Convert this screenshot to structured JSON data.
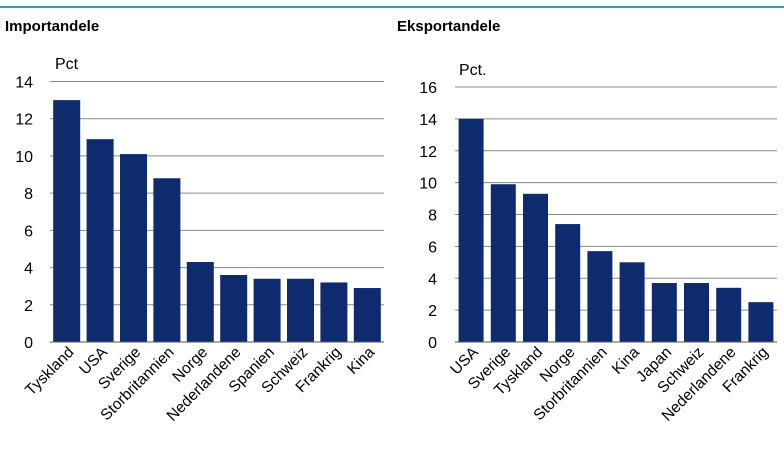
{
  "chart_data": [
    {
      "type": "bar",
      "title": "Importandele",
      "ylabel": "Pct",
      "ylim": [
        0,
        14
      ],
      "yticks": [
        0,
        2,
        4,
        6,
        8,
        10,
        12,
        14
      ],
      "categories": [
        "Tyskland",
        "USA",
        "Sverige",
        "Storbritannien",
        "Norge",
        "Nederlandene",
        "Spanien",
        "Schweiz",
        "Frankrig",
        "Kina"
      ],
      "values": [
        13.0,
        10.9,
        10.1,
        8.8,
        4.3,
        3.6,
        3.4,
        3.4,
        3.2,
        2.9
      ],
      "bar_color": "#0d2b6e",
      "grid": true
    },
    {
      "type": "bar",
      "title": "Eksportandele",
      "ylabel": "Pct.",
      "ylim": [
        0,
        16
      ],
      "yticks": [
        0,
        2,
        4,
        6,
        8,
        10,
        12,
        14,
        16
      ],
      "categories": [
        "USA",
        "Sverige",
        "Tyskland",
        "Norge",
        "Storbritannien",
        "Kina",
        "Japan",
        "Schweiz",
        "Nederlandene",
        "Frankrig"
      ],
      "values": [
        14.0,
        9.9,
        9.3,
        7.4,
        5.7,
        5.0,
        3.7,
        3.7,
        3.4,
        2.5
      ],
      "bar_color": "#0d2b6e",
      "grid": true
    }
  ]
}
